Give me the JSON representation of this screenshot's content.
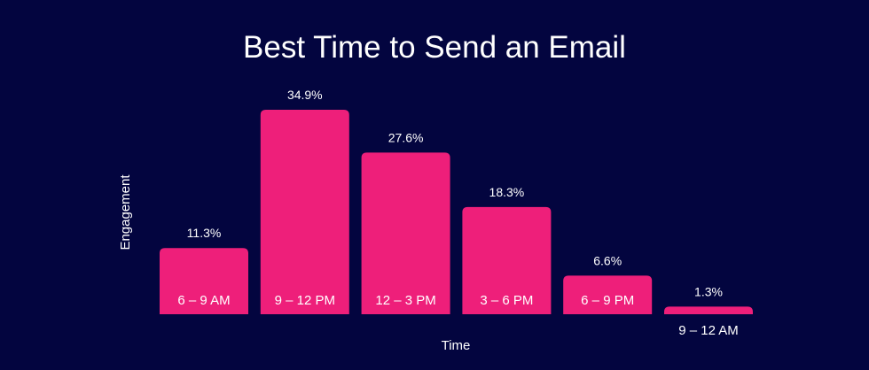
{
  "chart_data": {
    "type": "bar",
    "title": "Best Time to Send an Email",
    "xlabel": "Time",
    "ylabel": "Engagement",
    "categories": [
      "6 – 9 AM",
      "9 – 12 PM",
      "12 – 3 PM",
      "3 – 6 PM",
      "6 – 9 PM",
      "9 – 12 AM"
    ],
    "values": [
      11.3,
      34.9,
      27.6,
      18.3,
      6.6,
      1.3
    ],
    "value_labels": [
      "11.3%",
      "34.9%",
      "27.6%",
      "18.3%",
      "6.6%",
      "1.3%"
    ],
    "ylim": [
      0,
      34.9
    ],
    "grid": false,
    "legend": "none",
    "colors": {
      "background": "#03053f",
      "bar": "#ee1f7a",
      "text": "#ffffff"
    }
  }
}
